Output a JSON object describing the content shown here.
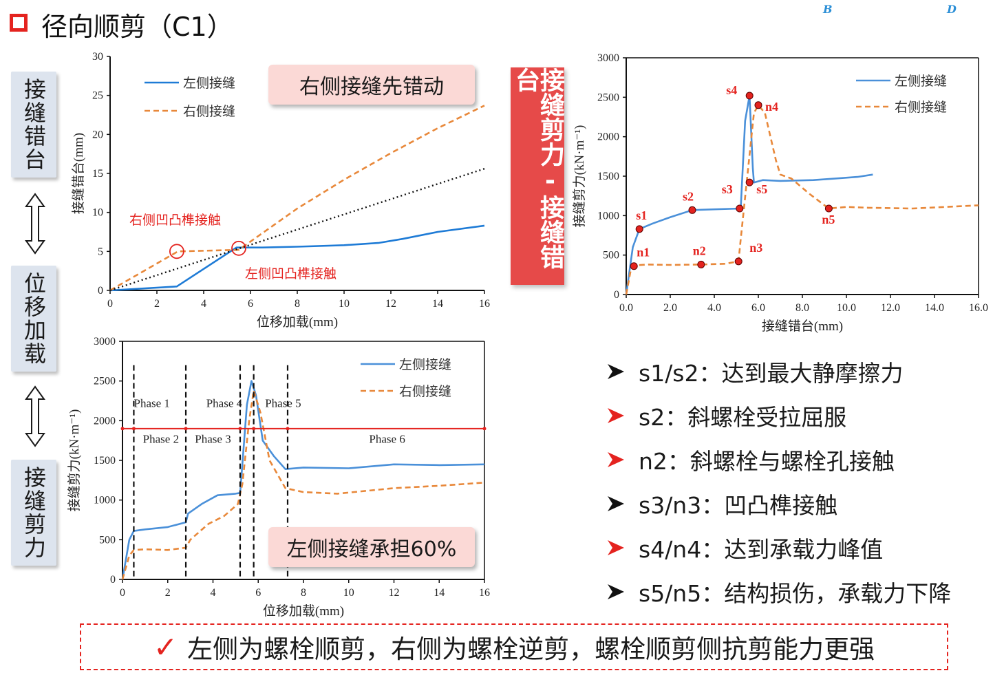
{
  "slide": {
    "title": "径向顺剪（C1）",
    "corner_labels": [
      "B",
      "D"
    ],
    "left_labels": [
      "接缝错台",
      "位移加载",
      "接缝剪力"
    ],
    "red_banner": "接缝剪力-接缝错台",
    "callout_top": "右侧接缝先错动",
    "callout_bottom": "左侧接缝承担60%",
    "annot_right": "右侧凹凸榫接触",
    "annot_left": "左侧凹凸榫接触",
    "bullets": [
      {
        "text": "s1/s2：达到最大静摩擦力",
        "arrow": "black"
      },
      {
        "text": "s2：斜螺栓受拉屈服",
        "arrow": "red"
      },
      {
        "text": "n2：斜螺栓与螺栓孔接触",
        "arrow": "red"
      },
      {
        "text": "s3/n3：凹凸榫接触",
        "arrow": "black"
      },
      {
        "text": "s4/n4：达到承载力峰值",
        "arrow": "red"
      },
      {
        "text": "s5/n5：结构损伤，承载力下降",
        "arrow": "black"
      }
    ],
    "conclusion_check": "✓",
    "conclusion": "左侧为螺栓顺剪，右侧为螺栓逆剪，螺栓顺剪侧抗剪能力更强",
    "colors": {
      "red": "#e4231f",
      "blue": "#4a90d9",
      "orange": "#e8883a",
      "banner": "#e64a49",
      "callout": "#fbd9d6"
    }
  },
  "chart_data": [
    {
      "type": "line",
      "xlabel": "位移加载(mm)",
      "ylabel": "接缝错台(mm)",
      "xlim": [
        0,
        16
      ],
      "ylim": [
        0,
        30
      ],
      "xticks": [
        0,
        2,
        4,
        6,
        8,
        10,
        12,
        14,
        16
      ],
      "yticks": [
        0,
        5,
        10,
        15,
        20,
        25,
        30
      ],
      "legend_position": "top-left",
      "series": [
        {
          "name": "左侧接缝",
          "style": "solid",
          "color": "#1e7bd6",
          "x": [
            0,
            2.85,
            5.4,
            6.5,
            8,
            10,
            11.5,
            12.5,
            14,
            16
          ],
          "y": [
            0,
            0.5,
            5.5,
            5.5,
            5.6,
            5.8,
            6.1,
            6.6,
            7.5,
            8.3
          ]
        },
        {
          "name": "右侧接缝",
          "style": "dashed",
          "color": "#e8883a",
          "x": [
            0,
            2.9,
            5.5,
            8,
            10,
            12,
            14,
            16
          ],
          "y": [
            0,
            5.0,
            5.2,
            10.5,
            14.2,
            17.6,
            20.8,
            23.7
          ]
        },
        {
          "name": "",
          "style": "dotted",
          "color": "#111111",
          "x": [
            0,
            16
          ],
          "y": [
            0,
            15.6
          ]
        }
      ],
      "markers": [
        {
          "x": 2.85,
          "y": 5.0
        },
        {
          "x": 5.5,
          "y": 5.4
        }
      ]
    },
    {
      "type": "line",
      "xlabel": "接缝错台(mm)",
      "ylabel": "接缝剪力(kN·m⁻¹)",
      "xlim": [
        0,
        16
      ],
      "ylim": [
        0,
        3000
      ],
      "xticks": [
        "0.0",
        "2.0",
        "4.0",
        "6.0",
        "8.0",
        "10.0",
        "12.0",
        "14.0",
        "16.0"
      ],
      "yticks": [
        0,
        500,
        1000,
        1500,
        2000,
        2500,
        3000
      ],
      "legend_position": "top-right",
      "series": [
        {
          "name": "左侧接缝",
          "style": "solid",
          "color": "#4a90d9",
          "x": [
            0,
            0.3,
            0.6,
            1.2,
            2.0,
            3.0,
            4.0,
            5.2,
            5.4,
            5.6,
            5.75,
            5.8,
            6.2,
            7.0,
            8.5,
            9.5,
            10.5,
            11.2
          ],
          "y": [
            0,
            600,
            830,
            900,
            980,
            1070,
            1080,
            1090,
            2200,
            2520,
            1600,
            1420,
            1450,
            1440,
            1450,
            1470,
            1490,
            1520
          ]
        },
        {
          "name": "右侧接缝",
          "style": "dashed",
          "color": "#e8883a",
          "x": [
            0,
            0.2,
            0.35,
            1.0,
            2.0,
            3.4,
            4.5,
            5.1,
            5.2,
            5.5,
            5.8,
            6.0,
            6.3,
            6.8,
            7.0,
            7.5,
            8.3,
            9.2,
            10.0,
            11.0,
            13.0,
            14.5,
            16.0
          ],
          "y": [
            0,
            300,
            370,
            380,
            375,
            380,
            390,
            420,
            700,
            1500,
            2300,
            2400,
            2300,
            1700,
            1520,
            1470,
            1280,
            1090,
            1110,
            1100,
            1090,
            1110,
            1130
          ]
        }
      ],
      "points": [
        {
          "label": "s1",
          "x": 0.6,
          "y": 830
        },
        {
          "label": "s2",
          "x": 3.0,
          "y": 1070
        },
        {
          "label": "s3",
          "x": 5.15,
          "y": 1090
        },
        {
          "label": "s4",
          "x": 5.6,
          "y": 2520
        },
        {
          "label": "s5",
          "x": 5.6,
          "y": 1420
        },
        {
          "label": "n1",
          "x": 0.35,
          "y": 360
        },
        {
          "label": "n2",
          "x": 3.4,
          "y": 380
        },
        {
          "label": "n3",
          "x": 5.1,
          "y": 420
        },
        {
          "label": "n4",
          "x": 6.0,
          "y": 2400
        },
        {
          "label": "n5",
          "x": 9.2,
          "y": 1090
        }
      ]
    },
    {
      "type": "line",
      "xlabel": "位移加载(mm)",
      "ylabel": "接缝剪力(kN·m⁻¹)",
      "xlim": [
        0,
        16
      ],
      "ylim": [
        0,
        3000
      ],
      "xticks": [
        0,
        2,
        4,
        6,
        8,
        10,
        12,
        14,
        16
      ],
      "yticks": [
        0,
        500,
        1000,
        1500,
        2000,
        2500,
        3000
      ],
      "legend_position": "top-right",
      "series": [
        {
          "name": "左侧接缝",
          "style": "solid",
          "color": "#4a90d9",
          "x": [
            0,
            0.3,
            0.5,
            1.0,
            2.0,
            2.8,
            2.9,
            3.5,
            4.2,
            5.0,
            5.2,
            5.5,
            5.7,
            5.9,
            6.2,
            6.7,
            7.2,
            8.0,
            10.0,
            12.0,
            14.0,
            16.0
          ],
          "y": [
            0,
            500,
            610,
            630,
            660,
            720,
            830,
            950,
            1060,
            1080,
            1090,
            2200,
            2500,
            2320,
            1750,
            1550,
            1390,
            1410,
            1400,
            1450,
            1440,
            1450
          ]
        },
        {
          "name": "右侧接缝",
          "style": "dashed",
          "color": "#e8883a",
          "x": [
            0,
            0.3,
            0.5,
            1.0,
            2.0,
            2.8,
            3.0,
            3.8,
            4.5,
            5.1,
            5.3,
            5.6,
            5.8,
            6.1,
            6.5,
            7.2,
            8.0,
            9.5,
            12.0,
            14.0,
            16.0
          ],
          "y": [
            0,
            300,
            370,
            380,
            370,
            400,
            500,
            700,
            800,
            950,
            1200,
            2000,
            2380,
            2100,
            1500,
            1150,
            1100,
            1080,
            1150,
            1180,
            1220
          ]
        }
      ],
      "phase_lines": [
        0.5,
        2.8,
        5.2,
        5.8,
        7.3
      ],
      "phases": [
        {
          "name": "Phase 1",
          "row": 1,
          "at": 1.3
        },
        {
          "name": "Phase 2",
          "row": 2,
          "at": 1.7
        },
        {
          "name": "Phase 3",
          "row": 2,
          "at": 4.0
        },
        {
          "name": "Phase 4",
          "row": 1,
          "at": 4.5
        },
        {
          "name": "Phase 5",
          "row": 1,
          "at": 7.1
        },
        {
          "name": "Phase 6",
          "row": 2,
          "at": 11.7
        }
      ]
    }
  ]
}
